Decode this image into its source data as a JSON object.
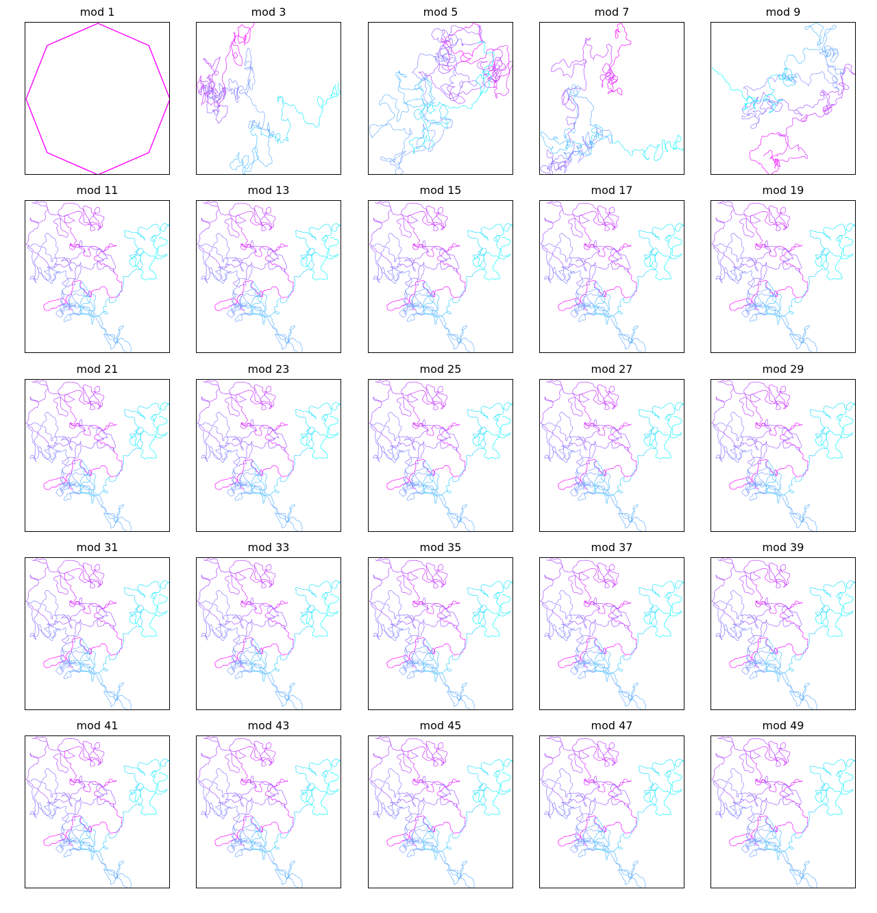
{
  "chart_data": {
    "type": "line",
    "layout": "grid of small multiples, 5 rows by 5 columns",
    "axes_visible": false,
    "grid": false,
    "legend": "none",
    "colormap": [
      "#ff00ff",
      "#bf40ff",
      "#9966ff",
      "#7f9fff",
      "#4fbfff",
      "#00ffff"
    ],
    "panels": [
      {
        "title": "mod 1",
        "modulus": 1,
        "shape": "octagon"
      },
      {
        "title": "mod 3",
        "modulus": 3,
        "shape": "walk"
      },
      {
        "title": "mod 5",
        "modulus": 5,
        "shape": "walk"
      },
      {
        "title": "mod 7",
        "modulus": 7,
        "shape": "walk"
      },
      {
        "title": "mod 9",
        "modulus": 9,
        "shape": "walk"
      },
      {
        "title": "mod 11",
        "modulus": 11,
        "shape": "walk"
      },
      {
        "title": "mod 13",
        "modulus": 13,
        "shape": "walk"
      },
      {
        "title": "mod 15",
        "modulus": 15,
        "shape": "walk"
      },
      {
        "title": "mod 17",
        "modulus": 17,
        "shape": "walk"
      },
      {
        "title": "mod 19",
        "modulus": 19,
        "shape": "walk"
      },
      {
        "title": "mod 21",
        "modulus": 21,
        "shape": "walk"
      },
      {
        "title": "mod 23",
        "modulus": 23,
        "shape": "walk"
      },
      {
        "title": "mod 25",
        "modulus": 25,
        "shape": "walk"
      },
      {
        "title": "mod 27",
        "modulus": 27,
        "shape": "walk"
      },
      {
        "title": "mod 29",
        "modulus": 29,
        "shape": "walk"
      },
      {
        "title": "mod 31",
        "modulus": 31,
        "shape": "walk"
      },
      {
        "title": "mod 33",
        "modulus": 33,
        "shape": "walk"
      },
      {
        "title": "mod 35",
        "modulus": 35,
        "shape": "walk"
      },
      {
        "title": "mod 37",
        "modulus": 37,
        "shape": "walk"
      },
      {
        "title": "mod 39",
        "modulus": 39,
        "shape": "walk"
      },
      {
        "title": "mod 41",
        "modulus": 41,
        "shape": "walk"
      },
      {
        "title": "mod 43",
        "modulus": 43,
        "shape": "walk"
      },
      {
        "title": "mod 45",
        "modulus": 45,
        "shape": "walk"
      },
      {
        "title": "mod 47",
        "modulus": 47,
        "shape": "walk"
      },
      {
        "title": "mod 49",
        "modulus": 49,
        "shape": "walk"
      }
    ]
  }
}
